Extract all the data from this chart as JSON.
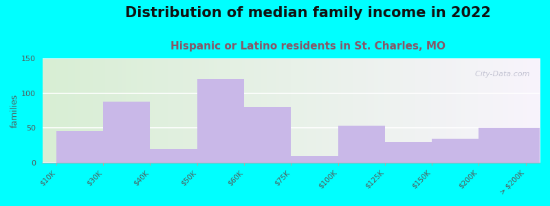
{
  "title": "Distribution of median family income in 2022",
  "subtitle": "Hispanic or Latino residents in St. Charles, MO",
  "ylabel": "families",
  "tick_labels": [
    "$10K",
    "$30K",
    "$40K",
    "$50K",
    "$60K",
    "$75K",
    "$100K",
    "$125K",
    "$150K",
    "$200K",
    "> $200K"
  ],
  "bar_edges": [
    0,
    1,
    2,
    3,
    4,
    5,
    6,
    7,
    8,
    9,
    11
  ],
  "bar_heights": [
    45,
    88,
    20,
    120,
    80,
    10,
    53,
    30,
    35,
    50
  ],
  "bar_color": "#c9b8e8",
  "background_outer": "#00ffff",
  "background_inner_left": "#ddf0dd",
  "background_inner_right": "#f0ecf8",
  "ylim": [
    0,
    150
  ],
  "yticks": [
    0,
    50,
    100,
    150
  ],
  "title_fontsize": 15,
  "subtitle_fontsize": 11,
  "subtitle_color": "#885566",
  "ylabel_fontsize": 9,
  "watermark": "  City-Data.com"
}
